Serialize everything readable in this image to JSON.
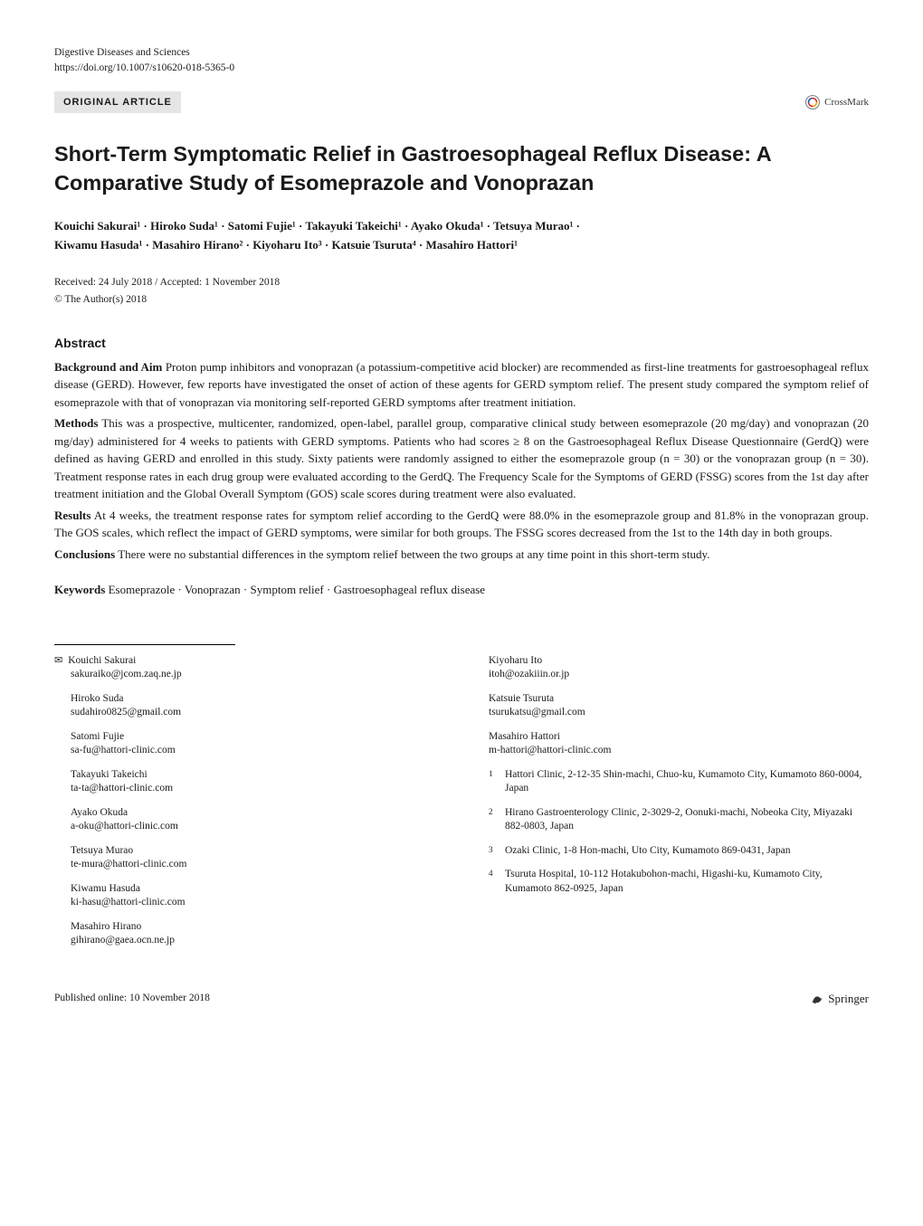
{
  "header": {
    "journal": "Digestive Diseases and Sciences",
    "doi": "https://doi.org/10.1007/s10620-018-5365-0",
    "article_type": "ORIGINAL ARTICLE",
    "crossmark_label": "CrossMark"
  },
  "title": "Short-Term Symptomatic Relief in Gastroesophageal Reflux Disease: A Comparative Study of Esomeprazole and Vonoprazan",
  "authors_line1": "Kouichi Sakurai¹ · Hiroko Suda¹ · Satomi Fujie¹ · Takayuki Takeichi¹ · Ayako Okuda¹ · Tetsuya Murao¹ · ",
  "authors_line2": "Kiwamu Hasuda¹ · Masahiro Hirano² · Kiyoharu Ito³ · Katsuie Tsuruta⁴ · Masahiro Hattori¹",
  "dates": "Received: 24 July 2018 / Accepted: 1 November 2018",
  "copyright": "© The Author(s) 2018",
  "abstract": {
    "heading": "Abstract",
    "background_label": "Background and Aim",
    "background_text": "  Proton pump inhibitors and vonoprazan (a potassium-competitive acid blocker) are recommended as first-line treatments for gastroesophageal reflux disease (GERD). However, few reports have investigated the onset of action of these agents for GERD symptom relief. The present study compared the symptom relief of esomeprazole with that of vonoprazan via monitoring self-reported GERD symptoms after treatment initiation.",
    "methods_label": "Methods",
    "methods_text": "  This was a prospective, multicenter, randomized, open-label, parallel group, comparative clinical study between esomeprazole (20 mg/day) and vonoprazan (20 mg/day) administered for 4 weeks to patients with GERD symptoms. Patients who had scores ≥ 8 on the Gastroesophageal Reflux Disease Questionnaire (GerdQ) were defined as having GERD and enrolled in this study. Sixty patients were randomly assigned to either the esomeprazole group (n = 30) or the vonoprazan group (n = 30). Treatment response rates in each drug group were evaluated according to the GerdQ. The Frequency Scale for the Symptoms of GERD (FSSG) scores from the 1st day after treatment initiation and the Global Overall Symptom (GOS) scale scores during treatment were also evaluated.",
    "results_label": "Results",
    "results_text": "  At 4 weeks, the treatment response rates for symptom relief according to the GerdQ were 88.0% in the esomeprazole group and 81.8% in the vonoprazan group. The GOS scales, which reflect the impact of GERD symptoms, were similar for both groups. The FSSG scores decreased from the 1st to the 14th day in both groups.",
    "conclusions_label": "Conclusions",
    "conclusions_text": "  There were no substantial differences in the symptom relief between the two groups at any time point in this short-term study."
  },
  "keywords": {
    "label": "Keywords",
    "text": "  Esomeprazole · Vonoprazan · Symptom relief · Gastroesophageal reflux disease"
  },
  "contacts": {
    "left": [
      {
        "name": "Kouichi Sakurai",
        "email": "sakuraiko@jcom.zaq.ne.jp",
        "corresponding": true
      },
      {
        "name": "Hiroko Suda",
        "email": "sudahiro0825@gmail.com"
      },
      {
        "name": "Satomi Fujie",
        "email": "sa-fu@hattori-clinic.com"
      },
      {
        "name": "Takayuki Takeichi",
        "email": "ta-ta@hattori-clinic.com"
      },
      {
        "name": "Ayako Okuda",
        "email": "a-oku@hattori-clinic.com"
      },
      {
        "name": "Tetsuya Murao",
        "email": "te-mura@hattori-clinic.com"
      },
      {
        "name": "Kiwamu Hasuda",
        "email": "ki-hasu@hattori-clinic.com"
      },
      {
        "name": "Masahiro Hirano",
        "email": "gihirano@gaea.ocn.ne.jp"
      }
    ],
    "right": [
      {
        "name": "Kiyoharu Ito",
        "email": "itoh@ozakiiin.or.jp"
      },
      {
        "name": "Katsuie Tsuruta",
        "email": "tsurukatsu@gmail.com"
      },
      {
        "name": "Masahiro Hattori",
        "email": "m-hattori@hattori-clinic.com"
      }
    ]
  },
  "affiliations": [
    {
      "num": "1",
      "text": "Hattori Clinic, 2-12-35 Shin-machi, Chuo-ku, Kumamoto City, Kumamoto 860-0004, Japan"
    },
    {
      "num": "2",
      "text": "Hirano Gastroenterology Clinic, 2-3029-2, Oonuki-machi, Nobeoka City, Miyazaki 882-0803, Japan"
    },
    {
      "num": "3",
      "text": "Ozaki Clinic, 1-8 Hon-machi, Uto City, Kumamoto 869-0431, Japan"
    },
    {
      "num": "4",
      "text": "Tsuruta Hospital, 10-112 Hotakubohon-machi, Higashi-ku, Kumamoto City, Kumamoto 862-0925, Japan"
    }
  ],
  "footer": {
    "published": "Published online: 10 November 2018",
    "publisher": "Springer"
  }
}
